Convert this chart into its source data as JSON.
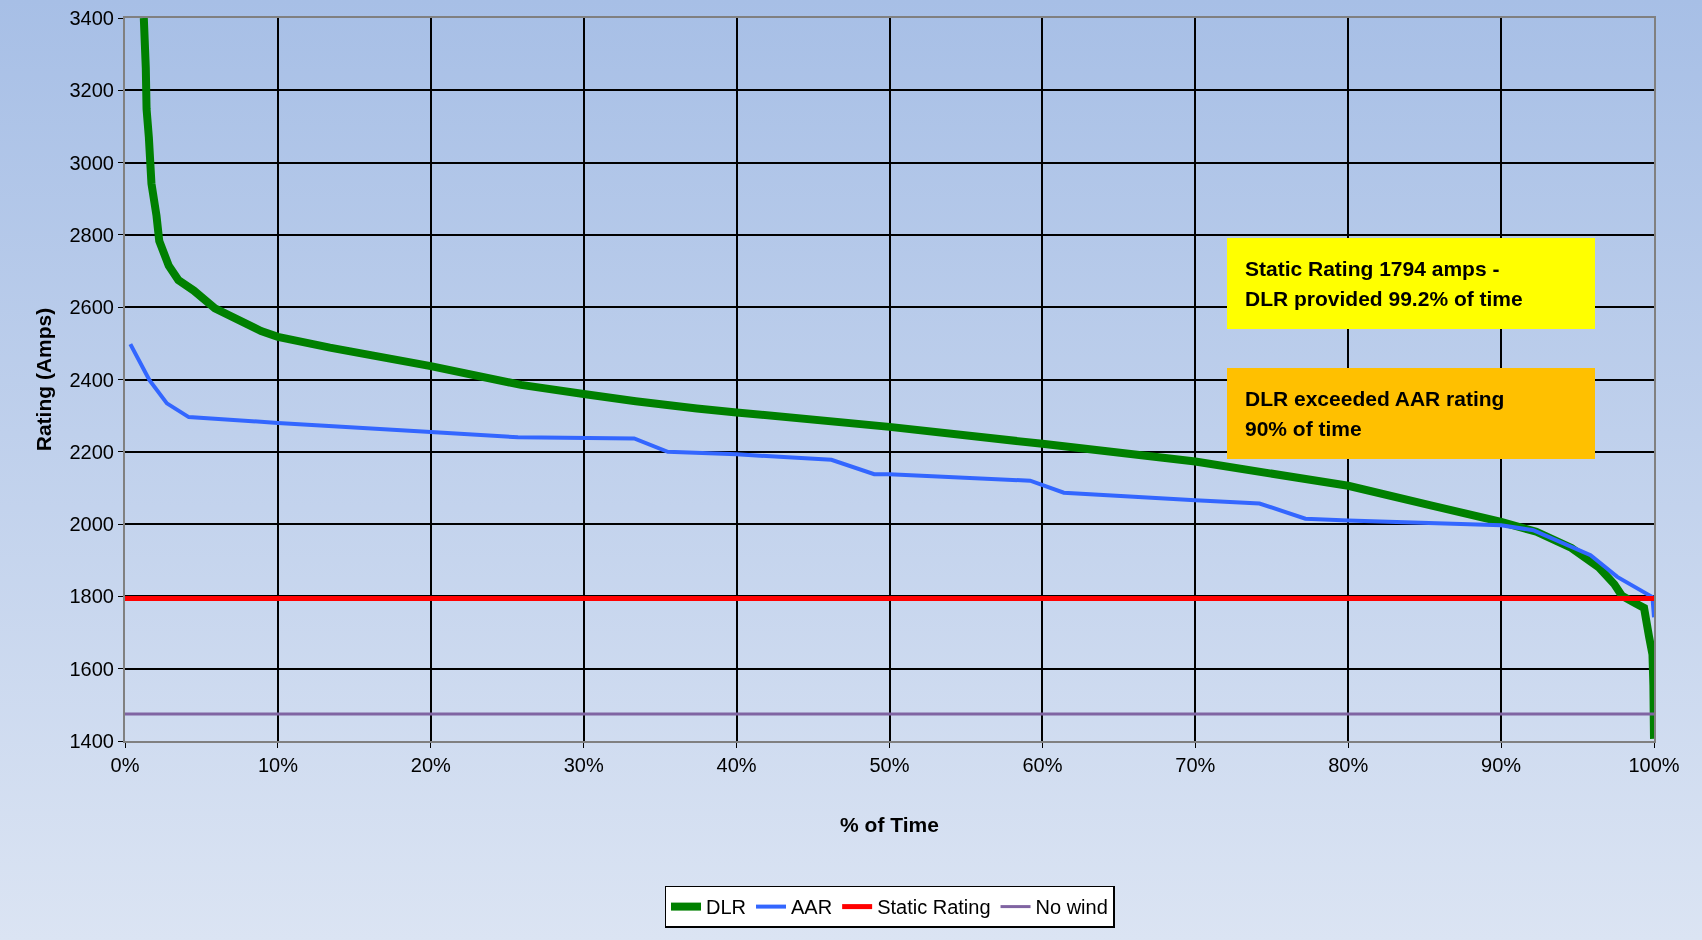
{
  "chart_data": {
    "type": "line",
    "xlabel": "% of Time",
    "ylabel": "Rating (Amps)",
    "xlim": [
      0,
      100
    ],
    "xticks": [
      {
        "value": 0,
        "label": "0%"
      },
      {
        "value": 10,
        "label": "10%"
      },
      {
        "value": 20,
        "label": "20%"
      },
      {
        "value": 30,
        "label": "30%"
      },
      {
        "value": 40,
        "label": "40%"
      },
      {
        "value": 50,
        "label": "50%"
      },
      {
        "value": 60,
        "label": "60%"
      },
      {
        "value": 70,
        "label": "70%"
      },
      {
        "value": 80,
        "label": "80%"
      },
      {
        "value": 90,
        "label": "90%"
      },
      {
        "value": 100,
        "label": "100%"
      }
    ],
    "ylim": [
      1400,
      3400
    ],
    "yticks": [
      1400,
      1600,
      1800,
      2000,
      2200,
      2400,
      2600,
      2800,
      3000,
      3200,
      3400
    ],
    "grid": true,
    "legend": "bottom",
    "marker": "none",
    "line_style": "solid",
    "series": [
      {
        "name": "DLR",
        "color": "#008000",
        "x": [
          1.23,
          1.36,
          1.41,
          1.56,
          1.73,
          2.06,
          2.24,
          2.86,
          3.49,
          4.5,
          5.88,
          8.9,
          10,
          13.4,
          20,
          25.9,
          30,
          33.4,
          37.4,
          40,
          50,
          60,
          70,
          80,
          85.4,
          90,
          92.3,
          94.6,
          96.4,
          97.4,
          97.9,
          98.6,
          99.35,
          99.67,
          99.9,
          99.96,
          100
        ],
        "values": [
          3400,
          3262,
          3148,
          3070,
          2942,
          2853,
          2783,
          2715,
          2675,
          2646,
          2597,
          2534,
          2518,
          2488,
          2437,
          2385,
          2360,
          2340,
          2320,
          2309,
          2269,
          2222,
          2173,
          2106,
          2052,
          2006,
          1979,
          1934,
          1880,
          1834,
          1802,
          1785,
          1768,
          1690,
          1639,
          1553,
          1406
        ]
      },
      {
        "name": "AAR",
        "color": "#3366ff",
        "x": [
          0.35,
          1.6,
          2.74,
          4.17,
          10,
          20,
          25.7,
          33.3,
          35.5,
          40,
          46.2,
          49,
          50,
          59.2,
          61.4,
          70,
          74.2,
          77.2,
          80,
          90,
          92.1,
          95.85,
          97.6,
          99.9,
          100
        ],
        "values": [
          2498,
          2398,
          2334,
          2296,
          2280,
          2255,
          2240,
          2237,
          2200,
          2193,
          2178,
          2138,
          2138,
          2120,
          2087,
          2066,
          2057,
          2015,
          2010,
          1997,
          1983,
          1914,
          1854,
          1798,
          1742
        ]
      },
      {
        "name": "Static Rating",
        "color": "#ff0000",
        "x": [
          0,
          100
        ],
        "values": [
          1794,
          1794
        ]
      },
      {
        "name": "No wind",
        "color": "#8064a2",
        "x": [
          0,
          100
        ],
        "values": [
          1475,
          1475
        ]
      }
    ],
    "annotations": [
      "Static Rating 1794  amps -\nDLR provided 99.2% of time",
      "DLR exceeded AAR rating\n90% of time"
    ]
  }
}
